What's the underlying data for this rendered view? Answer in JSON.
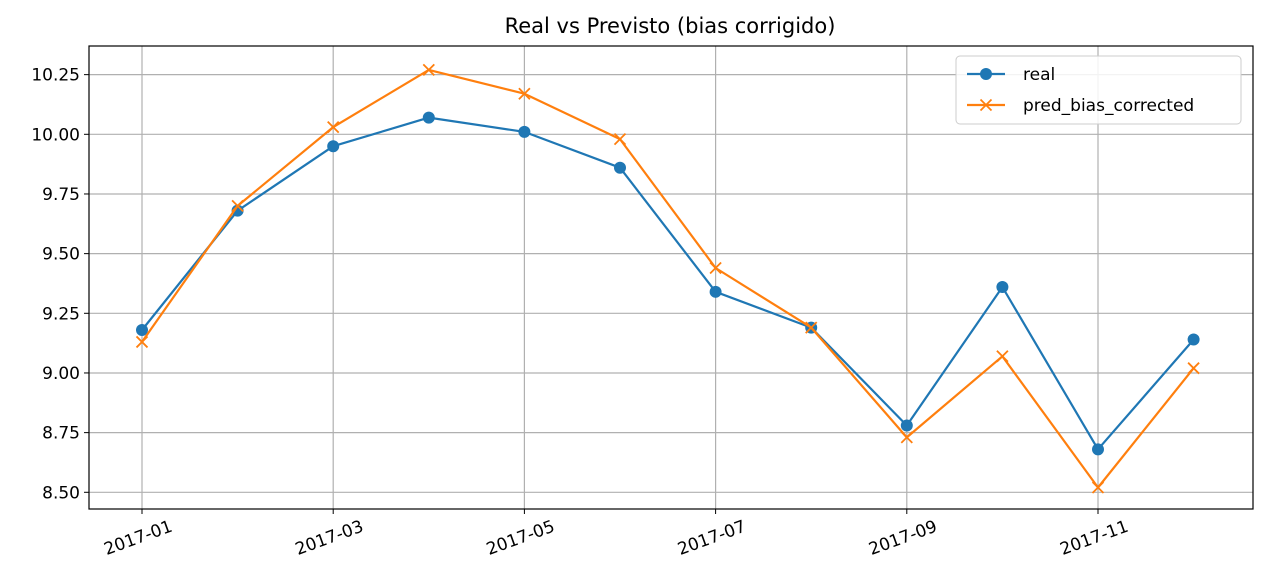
{
  "chart_data": {
    "type": "line",
    "title": "Real vs Previsto (bias corrigido)",
    "xlabel": "",
    "ylabel": "",
    "x": [
      "2017-01",
      "2017-02",
      "2017-03",
      "2017-04",
      "2017-05",
      "2017-06",
      "2017-07",
      "2017-08",
      "2017-09",
      "2017-10",
      "2017-11",
      "2017-12"
    ],
    "x_tick_labels": [
      "2017-01",
      "2017-03",
      "2017-05",
      "2017-07",
      "2017-09",
      "2017-11"
    ],
    "y_tick_labels": [
      "8.50",
      "8.75",
      "9.00",
      "9.25",
      "9.50",
      "9.75",
      "10.00",
      "10.25"
    ],
    "y_ticks": [
      8.5,
      8.75,
      9.0,
      9.25,
      9.5,
      9.75,
      10.0,
      10.25
    ],
    "ylim": [
      8.43,
      10.37
    ],
    "grid": true,
    "legend_position": "upper right",
    "series": [
      {
        "name": "real",
        "color": "#1f77b4",
        "marker": "circle",
        "values": [
          9.18,
          9.68,
          9.95,
          10.07,
          10.01,
          9.86,
          9.34,
          9.19,
          8.78,
          9.36,
          8.68,
          9.14
        ]
      },
      {
        "name": "pred_bias_corrected",
        "color": "#ff7f0e",
        "marker": "x",
        "values": [
          9.13,
          9.7,
          10.03,
          10.27,
          10.17,
          9.98,
          9.44,
          9.19,
          8.73,
          9.07,
          8.52,
          9.02
        ]
      }
    ]
  }
}
